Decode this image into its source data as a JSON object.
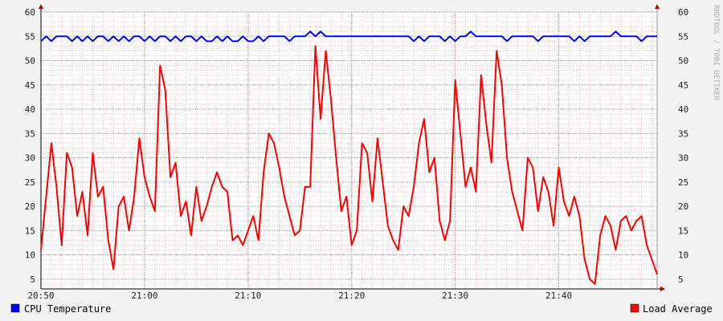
{
  "chart_data": {
    "type": "line",
    "watermark": "RRDTOOL / TOBI OETIKER",
    "ylim": [
      3,
      60
    ],
    "y_ticks": [
      5,
      10,
      15,
      20,
      25,
      30,
      35,
      40,
      45,
      50,
      55,
      60
    ],
    "x_range_min": [
      0,
      59.5
    ],
    "x_tick_labels": [
      "20:50",
      "21:00",
      "21:10",
      "21:20",
      "21:30",
      "21:40"
    ],
    "x_ticks_min": [
      0,
      10,
      20,
      30,
      40,
      50
    ],
    "grid": true,
    "series": [
      {
        "name": "CPU Temperature",
        "color": "#0000ff",
        "x": [
          0,
          0.5,
          1,
          1.5,
          2,
          2.5,
          3,
          3.5,
          4,
          4.5,
          5,
          5.5,
          6,
          6.5,
          7,
          7.5,
          8,
          8.5,
          9,
          9.5,
          10,
          10.5,
          11,
          11.5,
          12,
          12.5,
          13,
          13.5,
          14,
          14.5,
          15,
          15.5,
          16,
          16.5,
          17,
          17.5,
          18,
          18.5,
          19,
          19.5,
          20,
          20.5,
          21,
          21.5,
          22,
          22.5,
          23,
          23.5,
          24,
          24.5,
          25,
          25.5,
          26,
          26.5,
          27,
          27.5,
          28,
          28.5,
          29,
          29.5,
          30,
          30.5,
          31,
          31.5,
          32,
          32.5,
          33,
          33.5,
          34,
          34.5,
          35,
          35.5,
          36,
          36.5,
          37,
          37.5,
          38,
          38.5,
          39,
          39.5,
          40,
          40.5,
          41,
          41.5,
          42,
          42.5,
          43,
          43.5,
          44,
          44.5,
          45,
          45.5,
          46,
          46.5,
          47,
          47.5,
          48,
          48.5,
          49,
          49.5,
          50,
          50.5,
          51,
          51.5,
          52,
          52.5,
          53,
          53.5,
          54,
          54.5,
          55,
          55.5,
          56,
          56.5,
          57,
          57.5,
          58,
          58.5,
          59,
          59.5
        ],
        "values": [
          54,
          55,
          54,
          55,
          55,
          55,
          54,
          55,
          54,
          55,
          54,
          55,
          55,
          54,
          55,
          54,
          55,
          54,
          55,
          55,
          54,
          55,
          54,
          55,
          55,
          54,
          55,
          54,
          55,
          55,
          54,
          55,
          54,
          54,
          55,
          54,
          55,
          54,
          54,
          55,
          54,
          54,
          55,
          54,
          55,
          55,
          55,
          55,
          54,
          55,
          55,
          55,
          56,
          55,
          56,
          55,
          55,
          55,
          55,
          55,
          55,
          55,
          55,
          55,
          55,
          55,
          55,
          55,
          55,
          55,
          55,
          55,
          54,
          55,
          54,
          55,
          55,
          55,
          54,
          55,
          54,
          55,
          55,
          56,
          55,
          55,
          55,
          55,
          55,
          55,
          54,
          55,
          55,
          55,
          55,
          55,
          54,
          55,
          55,
          55,
          55,
          55,
          55,
          54,
          55,
          54,
          55,
          55,
          55,
          55,
          55,
          56,
          55,
          55,
          55,
          55,
          54,
          55,
          55,
          55
        ]
      },
      {
        "name": "Load Average",
        "color": "#ff0000",
        "x": [
          0,
          0.5,
          1,
          1.5,
          2,
          2.5,
          3,
          3.5,
          4,
          4.5,
          5,
          5.5,
          6,
          6.5,
          7,
          7.5,
          8,
          8.5,
          9,
          9.5,
          10,
          10.5,
          11,
          11.5,
          12,
          12.5,
          13,
          13.5,
          14,
          14.5,
          15,
          15.5,
          16,
          16.5,
          17,
          17.5,
          18,
          18.5,
          19,
          19.5,
          20,
          20.5,
          21,
          21.5,
          22,
          22.5,
          23,
          23.5,
          24,
          24.5,
          25,
          25.5,
          26,
          26.5,
          27,
          27.5,
          28,
          28.5,
          29,
          29.5,
          30,
          30.5,
          31,
          31.5,
          32,
          32.5,
          33,
          33.5,
          34,
          34.5,
          35,
          35.5,
          36,
          36.5,
          37,
          37.5,
          38,
          38.5,
          39,
          39.5,
          40,
          40.5,
          41,
          41.5,
          42,
          42.5,
          43,
          43.5,
          44,
          44.5,
          45,
          45.5,
          46,
          46.5,
          47,
          47.5,
          48,
          48.5,
          49,
          49.5,
          50,
          50.5,
          51,
          51.5,
          52,
          52.5,
          53,
          53.5,
          54,
          54.5,
          55,
          55.5,
          56,
          56.5,
          57,
          57.5,
          58,
          58.5,
          59,
          59.5
        ],
        "values": [
          11,
          22,
          33,
          24,
          12,
          31,
          28,
          18,
          23,
          14,
          31,
          22,
          24,
          13,
          7,
          20,
          22,
          15,
          22,
          34,
          26,
          22,
          19,
          49,
          44,
          26,
          29,
          18,
          21,
          14,
          24,
          17,
          20,
          24,
          27,
          24,
          23,
          13,
          14,
          12,
          15,
          18,
          13,
          27,
          35,
          33,
          28,
          22,
          18,
          14,
          15,
          24,
          24,
          53,
          38,
          52,
          42,
          30,
          19,
          22,
          12,
          15,
          33,
          31,
          21,
          34,
          25,
          16,
          13,
          11,
          20,
          18,
          24,
          33,
          38,
          27,
          30,
          17,
          13,
          17,
          46,
          35,
          24,
          28,
          23,
          47,
          37,
          29,
          52,
          45,
          30,
          23,
          19,
          15,
          30,
          28,
          19,
          26,
          23,
          16,
          28,
          21,
          18,
          22,
          18,
          9,
          5,
          4,
          14,
          18,
          16,
          11,
          17,
          18,
          15,
          17,
          18,
          12,
          9,
          6
        ]
      }
    ],
    "legend": [
      {
        "name": "CPU Temperature",
        "color": "#0000ff",
        "position": "bottom-left"
      },
      {
        "name": "Load Average",
        "color": "#ff0000",
        "position": "bottom-right"
      }
    ]
  }
}
